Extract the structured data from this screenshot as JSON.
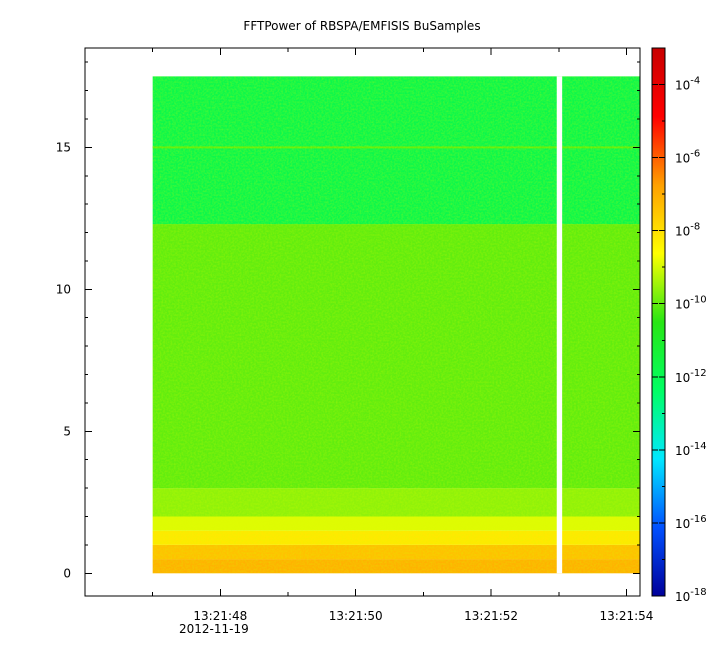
{
  "chart_data": {
    "type": "heatmap",
    "title": "FFTPower of RBSPA/EMFISIS  BuSamples",
    "xlabel": "",
    "ylabel": "",
    "x_axis": {
      "type": "time",
      "date": "2012-11-19",
      "range": [
        "13:21:46.0",
        "13:21:54.0"
      ],
      "tick_labels": [
        "13:21:48",
        "13:21:50",
        "13:21:52",
        "13:21:54"
      ],
      "tick_values_seconds": [
        48,
        50,
        52,
        54
      ],
      "minor_tick_values_seconds": [
        47,
        49,
        51,
        53
      ]
    },
    "y_axis": {
      "range": [
        -0.8,
        18.5
      ],
      "tick_values": [
        0,
        5,
        10,
        15
      ],
      "tick_labels": [
        "0",
        "5",
        "10",
        "15"
      ]
    },
    "data_extent": {
      "x_start_seconds": 47.0,
      "x_end_seconds": 54.2,
      "y_start": 0,
      "y_end": 17.5
    },
    "data_gap": {
      "x_start_seconds": 52.97,
      "x_end_seconds": 53.05
    },
    "colorbar": {
      "scale": "log",
      "range": [
        1e-18,
        0.001
      ],
      "tick_exponents": [
        -4,
        -6,
        -8,
        -10,
        -12,
        -14,
        -16,
        -18
      ],
      "tick_base": "10",
      "colormap": [
        "#00009a",
        "#0050ff",
        "#00e8ff",
        "#00ff64",
        "#28e614",
        "#ffff00",
        "#ffa000",
        "#ff0000",
        "#c80000"
      ]
    },
    "power_bands": [
      {
        "y_from": 0,
        "y_to": 0.5,
        "log10_power": -7.1
      },
      {
        "y_from": 0.5,
        "y_to": 1.0,
        "log10_power": -7.4
      },
      {
        "y_from": 1.0,
        "y_to": 1.5,
        "log10_power": -8.2
      },
      {
        "y_from": 1.5,
        "y_to": 2.0,
        "log10_power": -8.9
      },
      {
        "y_from": 2.0,
        "y_to": 3.0,
        "log10_power": -9.6
      },
      {
        "y_from": 3.0,
        "y_to": 12.3,
        "log10_power": -10.0
      },
      {
        "y_from": 12.3,
        "y_to": 17.5,
        "log10_power": -11.8
      }
    ],
    "line_features": [
      {
        "y": 15.0,
        "log10_power": -10.0
      }
    ]
  }
}
